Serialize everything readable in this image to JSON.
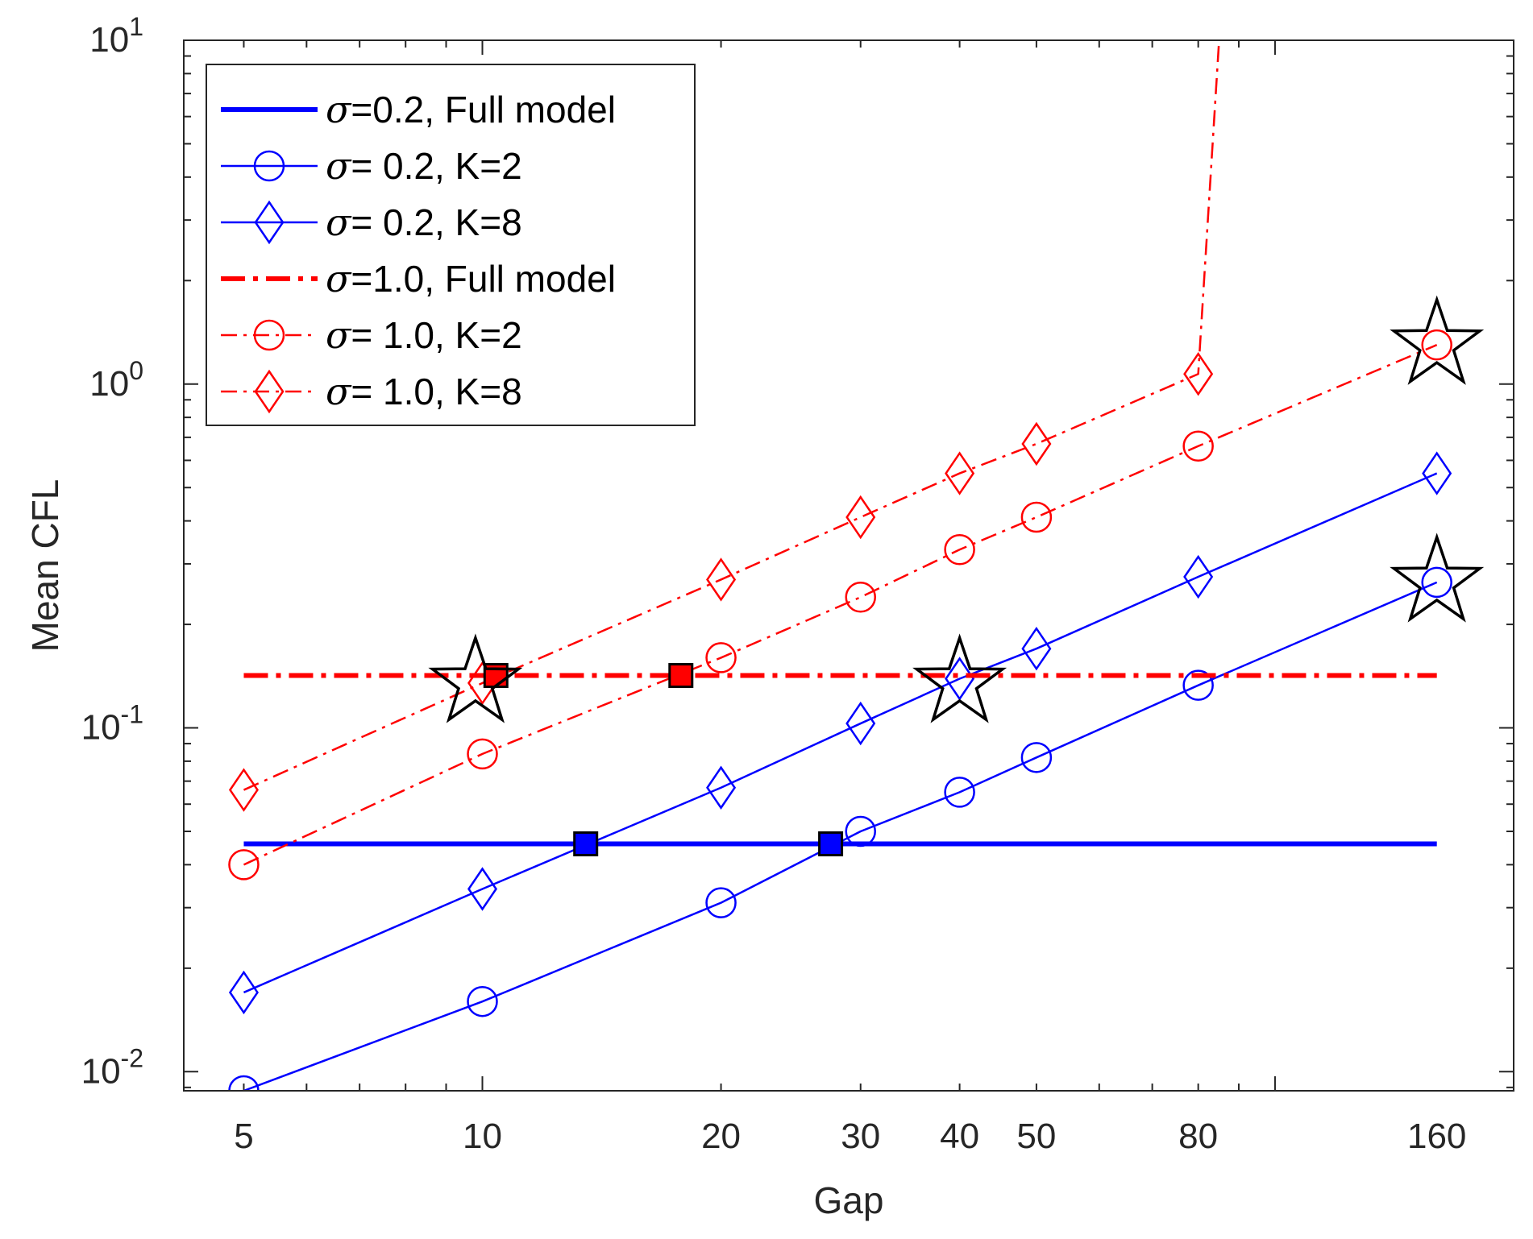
{
  "chart_data": {
    "type": "line",
    "title": "",
    "xlabel": "Gap",
    "ylabel": "Mean CFL",
    "xscale": "log",
    "yscale": "log",
    "xlim": [
      4.2,
      200
    ],
    "ylim": [
      0.0088,
      10
    ],
    "xticks": [
      5,
      10,
      20,
      30,
      40,
      50,
      80,
      160
    ],
    "xtick_labels": [
      "5",
      "10",
      "20",
      "30",
      "40",
      "50",
      "80",
      "160"
    ],
    "yticks": [
      {
        "value": 0.01,
        "base": "10",
        "exp": "-2"
      },
      {
        "value": 0.1,
        "base": "10",
        "exp": "-1"
      },
      {
        "value": 1,
        "base": "10",
        "exp": "0"
      },
      {
        "value": 10,
        "base": "10",
        "exp": "1"
      }
    ],
    "legend_position": "top-left",
    "series": [
      {
        "name": "σ=0.2, Full model",
        "sigma_symbol": "σ",
        "label_rest": "=0.2, Full model",
        "color": "#0000ff",
        "style": "solid-thick",
        "marker": "none",
        "x": [
          5,
          160
        ],
        "y": [
          0.046,
          0.046
        ]
      },
      {
        "name": "σ= 0.2, K=2",
        "sigma_symbol": "σ",
        "label_rest": "= 0.2, K=2",
        "color": "#0000ff",
        "style": "solid",
        "marker": "circle",
        "x": [
          5,
          10,
          20,
          30,
          40,
          50,
          80,
          160
        ],
        "y": [
          0.0088,
          0.016,
          0.031,
          0.05,
          0.065,
          0.082,
          0.133,
          0.265
        ]
      },
      {
        "name": "σ= 0.2, K=8",
        "sigma_symbol": "σ",
        "label_rest": "= 0.2, K=8",
        "color": "#0000ff",
        "style": "solid",
        "marker": "diamond",
        "x": [
          5,
          10,
          20,
          30,
          40,
          50,
          80,
          160
        ],
        "y": [
          0.017,
          0.034,
          0.067,
          0.103,
          0.139,
          0.17,
          0.275,
          0.55
        ]
      },
      {
        "name": "σ=1.0, Full model",
        "sigma_symbol": "σ",
        "label_rest": "=1.0, Full model",
        "color": "#ff0000",
        "style": "dashdot-thick",
        "marker": "none",
        "x": [
          5,
          160
        ],
        "y": [
          0.142,
          0.142
        ]
      },
      {
        "name": "σ= 1.0, K=2",
        "sigma_symbol": "σ",
        "label_rest": "= 1.0, K=2",
        "color": "#ff0000",
        "style": "dashdot",
        "marker": "circle",
        "x": [
          5,
          10,
          20,
          30,
          40,
          50,
          80,
          160
        ],
        "y": [
          0.04,
          0.084,
          0.16,
          0.24,
          0.33,
          0.41,
          0.66,
          1.3
        ]
      },
      {
        "name": "σ= 1.0, K=8",
        "sigma_symbol": "σ",
        "label_rest": "= 1.0, K=8",
        "color": "#ff0000",
        "style": "dashdot",
        "marker": "diamond",
        "x": [
          5,
          10,
          20,
          30,
          40,
          50,
          80,
          85
        ],
        "y": [
          0.066,
          0.135,
          0.27,
          0.41,
          0.55,
          0.67,
          1.07,
          10
        ]
      }
    ],
    "stars": [
      {
        "x": 9.8,
        "y": 0.135,
        "color": "#000000"
      },
      {
        "x": 40,
        "y": 0.135,
        "color": "#000000"
      },
      {
        "x": 160,
        "y": 0.265,
        "color": "#000000"
      },
      {
        "x": 160,
        "y": 1.3,
        "color": "#000000"
      }
    ],
    "squares": [
      {
        "x": 10.4,
        "y": 0.142,
        "color": "#ff0000"
      },
      {
        "x": 17.8,
        "y": 0.142,
        "color": "#ff0000"
      },
      {
        "x": 13.5,
        "y": 0.046,
        "color": "#0000ff"
      },
      {
        "x": 27.5,
        "y": 0.046,
        "color": "#0000ff"
      }
    ]
  }
}
